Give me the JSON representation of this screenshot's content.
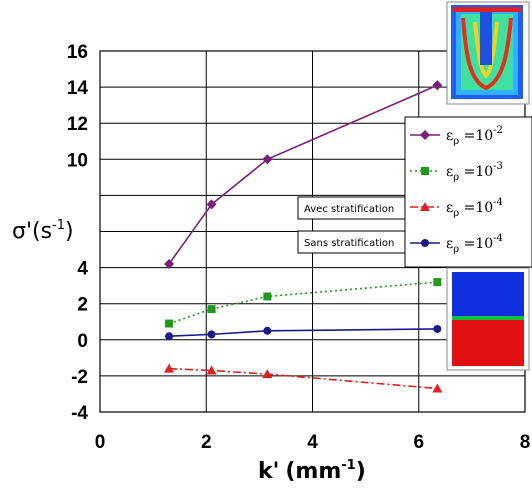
{
  "chart_data": {
    "type": "line",
    "xlabel_base": "k'",
    "xlabel_unit": "(mm",
    "xlabel_exp": "-1",
    "xlabel_close": ")",
    "ylabel_base": "σ'(s",
    "ylabel_exp": "-1",
    "ylabel_close": ")",
    "xlim": [
      0,
      8
    ],
    "ylim": [
      -4,
      16
    ],
    "xticks": [
      "0",
      "2",
      "4",
      "6",
      "8"
    ],
    "yticks": [
      "16",
      "14",
      "12",
      "10",
      "4",
      "2",
      "0",
      "-2",
      "-4"
    ],
    "grid": true,
    "series": [
      {
        "name": "ερ =10-2",
        "legend_prefix": "ε",
        "legend_sub": "ρ",
        "legend_eq": " =10",
        "legend_exp": "-2",
        "color": "#7a1f7a",
        "marker": "diamond",
        "dash": "solid",
        "x": [
          1.3,
          2.1,
          3.15,
          6.35
        ],
        "y": [
          4.2,
          7.5,
          10.0,
          14.1
        ]
      },
      {
        "name": "ερ =10-3",
        "legend_prefix": "ε",
        "legend_sub": "ρ",
        "legend_eq": " =10",
        "legend_exp": "-3",
        "color": "#1f9a1f",
        "marker": "square",
        "dash": "dotted",
        "x": [
          1.3,
          2.1,
          3.15,
          6.35
        ],
        "y": [
          0.9,
          1.7,
          2.4,
          3.2
        ]
      },
      {
        "name": "ερ =10-4",
        "legend_prefix": "ε",
        "legend_sub": "ρ",
        "legend_eq": " =10",
        "legend_exp": "-4",
        "color": "#e02020",
        "marker": "triangle",
        "dash": "dashdot",
        "x": [
          1.3,
          2.1,
          3.15,
          6.35
        ],
        "y": [
          -1.6,
          -1.7,
          -1.9,
          -2.7
        ]
      },
      {
        "name": "ερ =10-4",
        "legend_prefix": "ε",
        "legend_sub": "ρ",
        "legend_eq": " =10",
        "legend_exp": "-4",
        "color": "#1a1a8a",
        "marker": "circle",
        "dash": "solid",
        "x": [
          1.3,
          2.1,
          3.15,
          6.35
        ],
        "y": [
          0.2,
          0.3,
          0.5,
          0.6
        ]
      }
    ],
    "annotations": [
      "Avec stratification",
      "Sans stratification"
    ],
    "legend_position": "right"
  },
  "colors": {
    "blue_field": "#1030e0",
    "red_field": "#e01010",
    "interface": "#10c040"
  }
}
